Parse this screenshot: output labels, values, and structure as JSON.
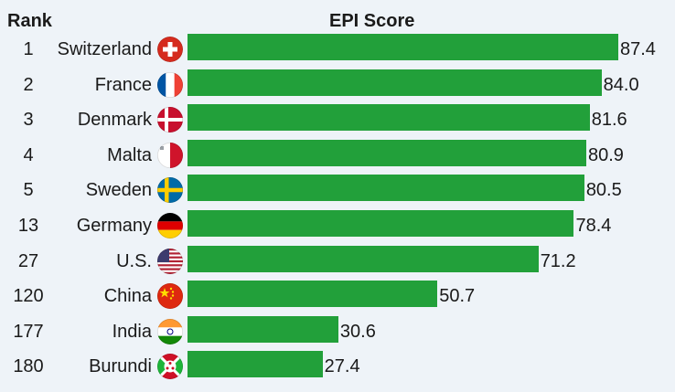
{
  "chart_data": {
    "type": "bar",
    "orientation": "horizontal",
    "title": "EPI Score",
    "rank_header": "Rank",
    "bar_color": "#22a03a",
    "background_color": "#eef3f8",
    "xlim": [
      0,
      87.4
    ],
    "rows": [
      {
        "rank": "1",
        "country": "Switzerland",
        "flag": "switzerland-flag",
        "value": 87.4,
        "label": "87.4"
      },
      {
        "rank": "2",
        "country": "France",
        "flag": "france-flag",
        "value": 84.0,
        "label": "84.0"
      },
      {
        "rank": "3",
        "country": "Denmark",
        "flag": "denmark-flag",
        "value": 81.6,
        "label": "81.6"
      },
      {
        "rank": "4",
        "country": "Malta",
        "flag": "malta-flag",
        "value": 80.9,
        "label": "80.9"
      },
      {
        "rank": "5",
        "country": "Sweden",
        "flag": "sweden-flag",
        "value": 80.5,
        "label": "80.5"
      },
      {
        "rank": "13",
        "country": "Germany",
        "flag": "germany-flag",
        "value": 78.4,
        "label": "78.4"
      },
      {
        "rank": "27",
        "country": "U.S.",
        "flag": "usa-flag",
        "value": 71.2,
        "label": "71.2"
      },
      {
        "rank": "120",
        "country": "China",
        "flag": "china-flag",
        "value": 50.7,
        "label": "50.7"
      },
      {
        "rank": "177",
        "country": "India",
        "flag": "india-flag",
        "value": 30.6,
        "label": "30.6"
      },
      {
        "rank": "180",
        "country": "Burundi",
        "flag": "burundi-flag",
        "value": 27.4,
        "label": "27.4"
      }
    ]
  }
}
